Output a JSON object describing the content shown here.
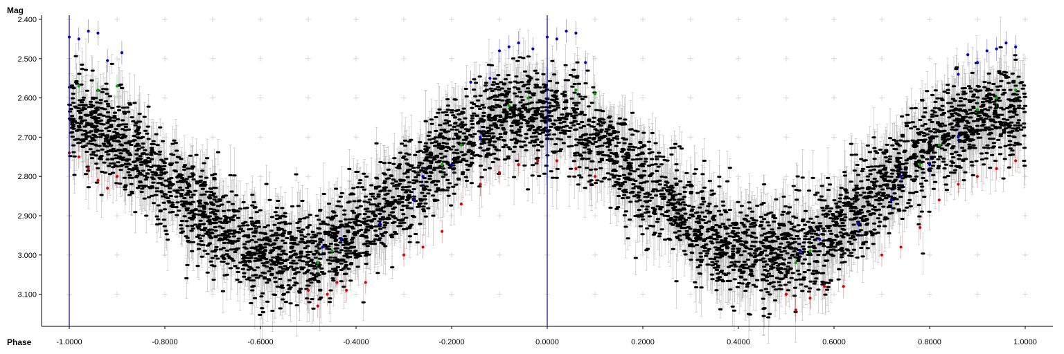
{
  "chart_data": {
    "type": "scatter",
    "title": "",
    "xlabel": "Phase",
    "ylabel": "Mag",
    "xlim": [
      -1.0,
      1.0
    ],
    "ylim": [
      2.39,
      3.19
    ],
    "y_inverted": true,
    "x_ticks": [
      "-1.0000",
      "-0.8000",
      "-0.6000",
      "-0.4000",
      "-0.2000",
      "0.0000",
      "0.2000",
      "0.4000",
      "0.6000",
      "0.8000",
      "1.0000"
    ],
    "x_tick_values": [
      -1.0,
      -0.8,
      -0.6,
      -0.4,
      -0.2,
      0.0,
      0.2,
      0.4,
      0.6,
      0.8,
      1.0
    ],
    "y_ticks": [
      "2.400",
      "2.500",
      "2.600",
      "2.700",
      "2.800",
      "2.900",
      "3.000",
      "3.100"
    ],
    "y_tick_values": [
      2.4,
      2.5,
      2.6,
      2.7,
      2.8,
      2.9,
      3.0,
      3.1
    ],
    "reference_lines_x": [
      -1.0,
      0.0
    ],
    "grid": "cross markers",
    "light_curve_model": {
      "mean": 2.82,
      "amplitude": 0.18,
      "period_in_phase": 1.0,
      "maximum_brightness_phase": -0.04,
      "scatter": 0.11,
      "error_bar": 0.04
    },
    "points_per_cycle": 2600,
    "colors": {
      "main_points": "#000000",
      "error_bars": "#b4b4b4",
      "blue_points": "#0000cc",
      "red_points": "#dd0000",
      "green_points": "#00aa00",
      "reference_line": "#0000cc",
      "grid_cross": "#d8d8d8"
    },
    "outlier_series": [
      {
        "color": "blue",
        "points": [
          [
            -1.0,
            2.445
          ],
          [
            -0.98,
            2.45
          ],
          [
            -0.96,
            2.43
          ],
          [
            -0.94,
            2.435
          ],
          [
            -0.92,
            2.505
          ],
          [
            -0.89,
            2.485
          ],
          [
            -0.16,
            2.56
          ],
          [
            -0.12,
            2.55
          ],
          [
            -0.1,
            2.48
          ],
          [
            -0.08,
            2.47
          ],
          [
            -0.06,
            2.46
          ],
          [
            -0.03,
            2.475
          ],
          [
            0.0,
            2.445
          ],
          [
            0.02,
            2.45
          ],
          [
            0.04,
            2.43
          ],
          [
            0.06,
            2.435
          ],
          [
            0.08,
            2.51
          ],
          [
            -0.47,
            2.98
          ],
          [
            -0.43,
            2.96
          ],
          [
            -0.35,
            2.92
          ],
          [
            -0.28,
            2.86
          ],
          [
            -0.26,
            2.8
          ],
          [
            -0.2,
            2.77
          ],
          [
            -0.14,
            2.7
          ],
          [
            0.86,
            2.54
          ],
          [
            0.88,
            2.49
          ],
          [
            0.9,
            2.51
          ],
          [
            0.92,
            2.48
          ],
          [
            0.94,
            2.475
          ],
          [
            0.96,
            2.46
          ],
          [
            0.98,
            2.47
          ],
          [
            0.53,
            2.99
          ],
          [
            0.57,
            2.96
          ],
          [
            0.65,
            2.92
          ],
          [
            0.72,
            2.86
          ],
          [
            0.74,
            2.8
          ],
          [
            0.8,
            2.77
          ],
          [
            0.86,
            2.7
          ]
        ]
      },
      {
        "color": "red",
        "points": [
          [
            -1.0,
            2.74
          ],
          [
            -0.98,
            2.75
          ],
          [
            -0.96,
            2.78
          ],
          [
            -0.94,
            2.81
          ],
          [
            -0.92,
            2.83
          ],
          [
            -0.9,
            2.8
          ],
          [
            -0.5,
            3.09
          ],
          [
            -0.48,
            3.13
          ],
          [
            -0.46,
            3.1
          ],
          [
            -0.44,
            3.07
          ],
          [
            -0.42,
            3.09
          ],
          [
            -0.38,
            3.07
          ],
          [
            -0.3,
            3.0
          ],
          [
            -0.26,
            2.98
          ],
          [
            -0.22,
            2.94
          ],
          [
            -0.18,
            2.87
          ],
          [
            -0.14,
            2.82
          ],
          [
            -0.1,
            2.79
          ],
          [
            -0.06,
            2.77
          ],
          [
            -0.02,
            2.76
          ],
          [
            0.02,
            2.76
          ],
          [
            0.06,
            2.78
          ],
          [
            0.1,
            2.8
          ],
          [
            0.5,
            3.1
          ],
          [
            0.52,
            3.14
          ],
          [
            0.55,
            3.11
          ],
          [
            0.58,
            3.08
          ],
          [
            0.62,
            3.08
          ],
          [
            0.7,
            3.0
          ],
          [
            0.74,
            2.98
          ],
          [
            0.78,
            2.93
          ],
          [
            0.82,
            2.86
          ],
          [
            0.86,
            2.82
          ],
          [
            0.9,
            2.8
          ],
          [
            0.94,
            2.78
          ],
          [
            0.98,
            2.76
          ]
        ]
      },
      {
        "color": "green",
        "points": [
          [
            -0.98,
            2.57
          ],
          [
            -0.94,
            2.58
          ],
          [
            -0.9,
            2.57
          ],
          [
            -0.48,
            3.02
          ],
          [
            -0.45,
            2.99
          ],
          [
            -0.22,
            2.77
          ],
          [
            -0.18,
            2.72
          ],
          [
            -0.08,
            2.62
          ],
          [
            -0.04,
            2.6
          ],
          [
            0.06,
            2.58
          ],
          [
            0.1,
            2.59
          ],
          [
            0.52,
            3.02
          ],
          [
            0.55,
            2.99
          ],
          [
            0.78,
            2.77
          ],
          [
            0.82,
            2.72
          ],
          [
            0.9,
            2.63
          ],
          [
            0.94,
            2.6
          ],
          [
            0.98,
            2.58
          ]
        ]
      }
    ]
  }
}
